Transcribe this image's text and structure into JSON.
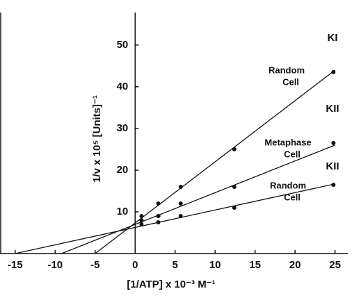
{
  "chart_data": {
    "type": "scatter",
    "x_label": "[1/ATP] x 10⁻³ M⁻¹",
    "y_label": "1/v x 10⁵ [Units]⁻¹",
    "xlim": [
      -16.9,
      26.6
    ],
    "ylim": [
      0,
      57.8
    ],
    "xticks": [
      -15,
      -10,
      -5,
      0,
      5,
      10,
      15,
      20,
      25
    ],
    "yticks": [
      10,
      20,
      30,
      40,
      50
    ],
    "color": "#111111",
    "series": [
      {
        "x": [
          0.8,
          2.9,
          5.7,
          12.4,
          24.8
        ],
        "values": [
          9,
          12,
          16,
          25,
          43.5
        ],
        "fit": {
          "x": [
            -5,
            25
          ],
          "y": [
            0,
            44
          ]
        }
      },
      {
        "x": [
          0.8,
          2.9,
          5.7,
          12.4,
          24.8
        ],
        "values": [
          8,
          9,
          12,
          16,
          26.5
        ],
        "fit": {
          "x": [
            -9.2,
            25
          ],
          "y": [
            0,
            26
          ]
        }
      },
      {
        "x": [
          0.8,
          2.9,
          5.7,
          12.4,
          24.8
        ],
        "values": [
          7,
          7.5,
          9,
          11,
          16.5
        ],
        "fit": {
          "x": [
            -15,
            25
          ],
          "y": [
            0,
            16.7
          ]
        }
      }
    ],
    "annotations": [
      {
        "lines": [
          "KI"
        ]
      },
      {
        "lines": [
          "Random",
          "Cell"
        ]
      },
      {
        "lines": [
          "KII"
        ]
      },
      {
        "lines": [
          "Metaphase",
          "Cell"
        ]
      },
      {
        "lines": [
          "KII"
        ]
      },
      {
        "lines": [
          "Random",
          "Cell"
        ]
      }
    ]
  }
}
